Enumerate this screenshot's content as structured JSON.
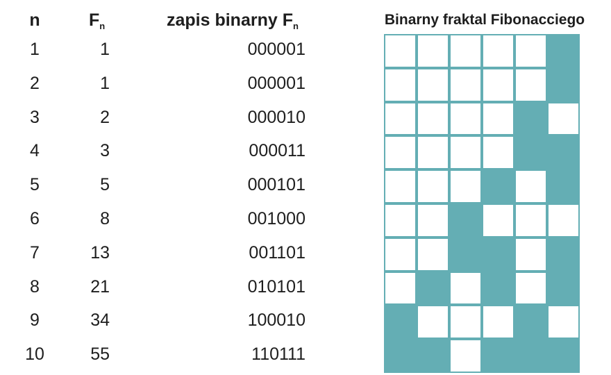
{
  "headers": {
    "n": "n",
    "f_main": "F",
    "f_sub": "n",
    "bin_main": "zapis binarny F",
    "bin_sub": "n"
  },
  "grid_title": "Binarny fraktal Fibonacciego",
  "colors": {
    "filled": "#64aeb4",
    "empty": "#ffffff"
  },
  "rows": [
    {
      "n": "1",
      "f": "1",
      "bin": "000001"
    },
    {
      "n": "2",
      "f": "1",
      "bin": "000001"
    },
    {
      "n": "3",
      "f": "2",
      "bin": "000010"
    },
    {
      "n": "4",
      "f": "3",
      "bin": "000011"
    },
    {
      "n": "5",
      "f": "5",
      "bin": "000101"
    },
    {
      "n": "6",
      "f": "8",
      "bin": "001000"
    },
    {
      "n": "7",
      "f": "13",
      "bin": "001101"
    },
    {
      "n": "8",
      "f": "21",
      "bin": "010101"
    },
    {
      "n": "9",
      "f": "34",
      "bin": "100010"
    },
    {
      "n": "10",
      "f": "55",
      "bin": "110111"
    }
  ]
}
